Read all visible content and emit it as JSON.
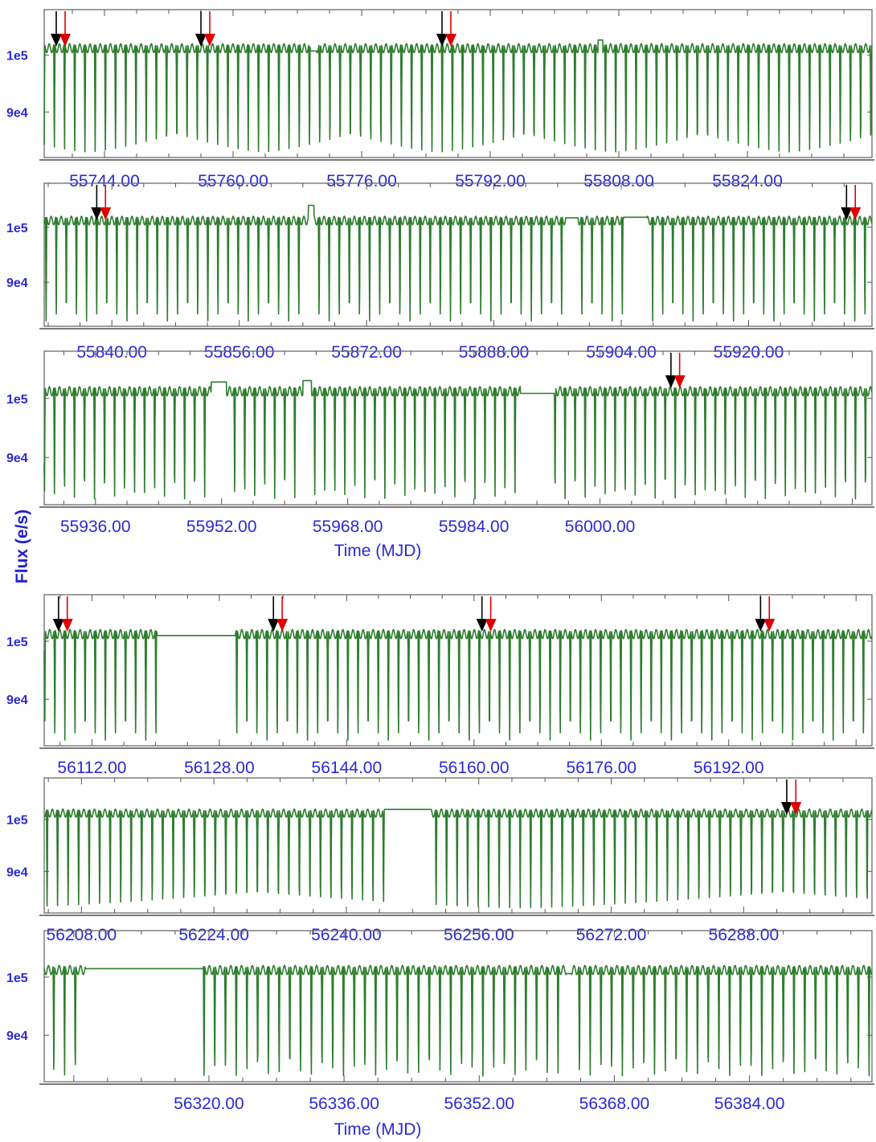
{
  "figure": {
    "y_axis_label": "Flux (e/s)",
    "x_axis_label": "Time (MJD)",
    "colors": {
      "curve": "#2e7d2e",
      "marker_primary": "#000000",
      "marker_secondary": "#e00000",
      "tick_labels": "#2a2ad6",
      "frame": "#6a6a6a"
    }
  },
  "chart_data": [
    {
      "type": "line",
      "panel": 1,
      "xlim": [
        55736.5,
        55839.5
      ],
      "ylim": [
        82000,
        108000
      ],
      "x_ticks": [
        "55744.00",
        "55760.00",
        "55776.00",
        "55792.00",
        "55808.00",
        "55824.00"
      ],
      "x_tick_values": [
        55744,
        55760,
        55776,
        55792,
        55808,
        55824
      ],
      "y_ticks": [
        "1e5",
        "9e4"
      ],
      "y_tick_values": [
        100000,
        90000
      ],
      "x_axis_label": "",
      "eclipse_period_days": 1.27,
      "out_of_eclipse_max": 102000,
      "eclipse_depth_min": 83000,
      "gaps": [
        [
          55769.6,
          55770.4
        ],
        [
          55805.4,
          55806.0
        ]
      ],
      "markers_black": [
        55738.0,
        55756.0,
        55786.0
      ],
      "markers_red": [
        55739.1,
        55757.1,
        55787.1
      ]
    },
    {
      "type": "line",
      "panel": 2,
      "xlim": [
        55831.5,
        55935.5
      ],
      "ylim": [
        82000,
        108000
      ],
      "x_ticks": [
        "55840.00",
        "55856.00",
        "55872.00",
        "55888.00",
        "55904.00",
        "55920.00"
      ],
      "x_tick_values": [
        55840,
        55856,
        55872,
        55888,
        55904,
        55920
      ],
      "y_ticks": [
        "1e5",
        "9e4"
      ],
      "y_tick_values": [
        100000,
        90000
      ],
      "x_axis_label": "",
      "eclipse_period_days": 1.27,
      "out_of_eclipse_max": 102000,
      "eclipse_depth_min": 83000,
      "gaps": [
        [
          55864.7,
          55865.4
        ],
        [
          55897.0,
          55898.6
        ],
        [
          55904.3,
          55907.2
        ]
      ],
      "markers_black": [
        55838.1,
        55932.3
      ],
      "markers_red": [
        55839.2,
        55933.4
      ]
    },
    {
      "type": "line",
      "panel": 3,
      "xlim": [
        55929.5,
        56034.5
      ],
      "ylim": [
        82000,
        108000
      ],
      "x_ticks": [
        "55936.00",
        "55952.00",
        "55968.00",
        "55984.00",
        "56000.00"
      ],
      "x_tick_values": [
        55936,
        55952,
        55968,
        55984,
        56000
      ],
      "y_ticks": [
        "1e5",
        "9e4"
      ],
      "y_tick_values": [
        100000,
        90000
      ],
      "x_axis_label": "Time (MJD)",
      "eclipse_period_days": 1.27,
      "out_of_eclipse_max": 102000,
      "eclipse_depth_min": 83000,
      "gaps": [
        [
          55950.7,
          55952.6
        ],
        [
          55962.3,
          55963.4
        ],
        [
          55989.9,
          55994.2
        ]
      ],
      "markers_black": [
        56009.0
      ],
      "markers_red": [
        56010.1
      ]
    },
    {
      "type": "line",
      "panel": 4,
      "xlim": [
        56106.0,
        56210.0
      ],
      "ylim": [
        82000,
        108000
      ],
      "x_ticks": [
        "56112.00",
        "56128.00",
        "56144.00",
        "56160.00",
        "56176.00",
        "56192.00"
      ],
      "x_tick_values": [
        56112,
        56128,
        56144,
        56160,
        56176,
        56192
      ],
      "y_ticks": [
        "1e5",
        "9e4"
      ],
      "y_tick_values": [
        100000,
        90000
      ],
      "x_axis_label": "",
      "eclipse_period_days": 1.27,
      "out_of_eclipse_max": 102000,
      "eclipse_depth_min": 83000,
      "gaps": [
        [
          56120.2,
          56130.0
        ]
      ],
      "markers_black": [
        56107.8,
        56134.8,
        56161.0,
        56196.0
      ],
      "markers_red": [
        56108.9,
        56135.9,
        56162.1,
        56197.1
      ]
    },
    {
      "type": "line",
      "panel": 5,
      "xlim": [
        56203.5,
        56303.5
      ],
      "ylim": [
        82000,
        108000
      ],
      "x_ticks": [
        "56208.00",
        "56224.00",
        "56240.00",
        "56256.00",
        "56272.00",
        "56288.00"
      ],
      "x_tick_values": [
        56208,
        56224,
        56240,
        56256,
        56272,
        56288
      ],
      "y_ticks": [
        "1e5",
        "9e4"
      ],
      "y_tick_values": [
        100000,
        90000
      ],
      "x_axis_label": "",
      "eclipse_period_days": 1.27,
      "out_of_eclipse_max": 102000,
      "eclipse_depth_min": 83000,
      "gaps": [
        [
          56244.6,
          56250.3
        ]
      ],
      "markers_black": [
        56293.2
      ],
      "markers_red": [
        56294.3
      ]
    },
    {
      "type": "line",
      "panel": 6,
      "xlim": [
        56300.5,
        56398.5
      ],
      "ylim": [
        82000,
        108000
      ],
      "x_ticks": [
        "56320.00",
        "56336.00",
        "56352.00",
        "56368.00",
        "56384.00"
      ],
      "x_tick_values": [
        56320,
        56336,
        56352,
        56368,
        56384
      ],
      "y_ticks": [
        "1e5",
        "9e4"
      ],
      "y_tick_values": [
        100000,
        90000
      ],
      "x_axis_label": "Time (MJD)",
      "eclipse_period_days": 1.27,
      "out_of_eclipse_max": 102000,
      "eclipse_depth_min": 83000,
      "gaps": [
        [
          56305.4,
          56319.3
        ],
        [
          56362.3,
          56362.9
        ]
      ],
      "markers_black": [],
      "markers_red": []
    }
  ]
}
